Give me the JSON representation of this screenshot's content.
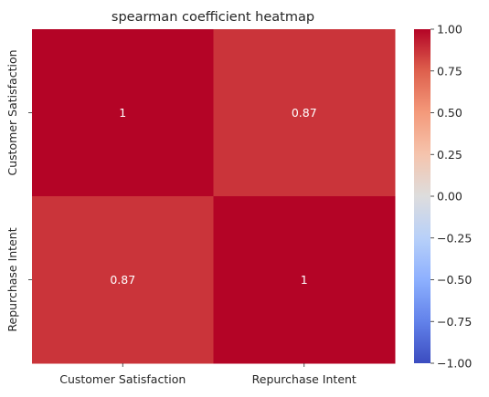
{
  "chart_data": {
    "type": "heatmap",
    "title": "spearman coefficient heatmap",
    "x_categories": [
      "Customer Satisfaction",
      "Repurchase Intent"
    ],
    "y_categories": [
      "Customer Satisfaction",
      "Repurchase Intent"
    ],
    "values": [
      [
        1,
        0.87
      ],
      [
        0.87,
        1
      ]
    ],
    "annotations": [
      [
        "1",
        "0.87"
      ],
      [
        "0.87",
        "1"
      ]
    ],
    "colormap": "coolwarm",
    "vmin": -1.0,
    "vmax": 1.0,
    "colorbar_ticks": [
      1.0,
      0.75,
      0.5,
      0.25,
      0.0,
      -0.25,
      -0.5,
      -0.75,
      -1.0
    ],
    "colorbar_tick_labels": [
      "1.00",
      "0.75",
      "0.50",
      "0.25",
      "0.00",
      "−0.25",
      "−0.50",
      "−0.75",
      "−1.00"
    ],
    "annotation_color": "#ffffff",
    "xlabel": "",
    "ylabel": "",
    "grid": false,
    "colorbar_position": "right"
  }
}
